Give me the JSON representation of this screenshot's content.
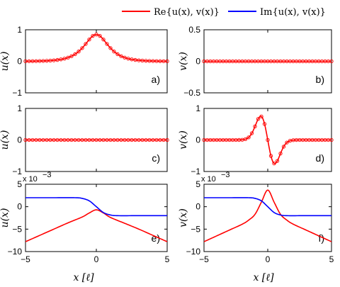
{
  "legend": {
    "real_label": "Re{u(x), v(x)}",
    "imag_label": "Im{u(x), v(x)}",
    "real_color": "#ff0000",
    "imag_color": "#0000ff"
  },
  "x_axis_label": "x [ℓ]",
  "chart_data": [
    {
      "panel": "a)",
      "type": "line",
      "ylabel": "u(x)",
      "xlim": [
        -5,
        5
      ],
      "ylim": [
        -1,
        1
      ],
      "yticks": [
        "1",
        "0",
        "−1"
      ],
      "markers": true,
      "series": [
        {
          "name": "Re{u(x), v(x)}",
          "shape": "sech",
          "amplitude": 0.85,
          "center": 0,
          "width": 0.75
        }
      ]
    },
    {
      "panel": "b)",
      "type": "line",
      "ylabel": "v(x)",
      "xlim": [
        -5,
        5
      ],
      "ylim": [
        -0.5,
        0.5
      ],
      "yticks": [
        "0.5",
        "0",
        "−0.5"
      ],
      "markers": true,
      "series": [
        {
          "name": "Re{u(x), v(x)}",
          "shape": "zero"
        }
      ]
    },
    {
      "panel": "c)",
      "type": "line",
      "ylabel": "u(x)",
      "xlim": [
        -5,
        5
      ],
      "ylim": [
        -1,
        1
      ],
      "yticks": [
        "1",
        "0",
        "−1"
      ],
      "markers": true,
      "series": [
        {
          "name": "Re{u(x), v(x)}",
          "shape": "zero"
        }
      ]
    },
    {
      "panel": "d)",
      "type": "line",
      "ylabel": "v(x)",
      "xlim": [
        -5,
        5
      ],
      "ylim": [
        -1,
        1
      ],
      "yticks": [
        "1",
        "0",
        "−1"
      ],
      "markers": true,
      "series": [
        {
          "name": "Re{u(x), v(x)}",
          "shape": "antisym",
          "peak_x": -0.55,
          "peak_y": 0.75,
          "trough_x": 0.55,
          "trough_y": -0.75
        }
      ]
    },
    {
      "panel": "e)",
      "type": "line",
      "ylabel": "u(x)",
      "y_multiplier": "x 10",
      "y_exponent": "−3",
      "xlim": [
        -5,
        5
      ],
      "ylim": [
        -10,
        5
      ],
      "yticks": [
        "5",
        "0",
        "−5",
        "−10"
      ],
      "xticks": [
        "−5",
        "0",
        "5"
      ],
      "markers": false,
      "series": [
        {
          "name": "Re{u(x), v(x)}",
          "points": [
            [
              -5,
              -7.8
            ],
            [
              -4,
              -6.4
            ],
            [
              -3,
              -5.0
            ],
            [
              -2,
              -3.6
            ],
            [
              -1,
              -2.3
            ],
            [
              -0.5,
              -1.4
            ],
            [
              0,
              -0.7
            ],
            [
              0.5,
              -1.4
            ],
            [
              1,
              -2.4
            ],
            [
              2,
              -3.7
            ],
            [
              3,
              -5.0
            ],
            [
              4,
              -6.4
            ],
            [
              5,
              -7.8
            ]
          ]
        },
        {
          "name": "Im{u(x), v(x)}",
          "points": [
            [
              -5,
              2.0
            ],
            [
              -3,
              2.0
            ],
            [
              -1.5,
              2.0
            ],
            [
              -1,
              1.85
            ],
            [
              -0.5,
              1.3
            ],
            [
              0,
              0.0
            ],
            [
              0.5,
              -1.3
            ],
            [
              1,
              -1.85
            ],
            [
              1.5,
              -2.0
            ],
            [
              3,
              -2.0
            ],
            [
              5,
              -2.0
            ]
          ]
        }
      ]
    },
    {
      "panel": "f)",
      "type": "line",
      "ylabel": "v(x)",
      "y_multiplier": "x 10",
      "y_exponent": "−3",
      "xlim": [
        -5,
        5
      ],
      "ylim": [
        -10,
        5
      ],
      "yticks": [
        "5",
        "0",
        "−5",
        "−10"
      ],
      "xticks": [
        "−5",
        "0",
        "5"
      ],
      "markers": false,
      "series": [
        {
          "name": "Re{u(x), v(x)}",
          "points": [
            [
              -5,
              -7.8
            ],
            [
              -4,
              -6.5
            ],
            [
              -3,
              -5.2
            ],
            [
              -2,
              -3.9
            ],
            [
              -1.5,
              -3.0
            ],
            [
              -1,
              -1.7
            ],
            [
              -0.5,
              1.0
            ],
            [
              0,
              3.7
            ],
            [
              0.5,
              1.0
            ],
            [
              1,
              -1.7
            ],
            [
              1.5,
              -3.0
            ],
            [
              2,
              -3.9
            ],
            [
              3,
              -5.2
            ],
            [
              4,
              -6.5
            ],
            [
              5,
              -7.8
            ]
          ]
        },
        {
          "name": "Im{u(x), v(x)}",
          "points": [
            [
              -5,
              2.0
            ],
            [
              -3,
              2.0
            ],
            [
              -1.5,
              2.0
            ],
            [
              -1,
              1.85
            ],
            [
              -0.5,
              1.3
            ],
            [
              0,
              0.0
            ],
            [
              0.5,
              -1.3
            ],
            [
              1,
              -1.85
            ],
            [
              1.5,
              -2.0
            ],
            [
              3,
              -2.0
            ],
            [
              5,
              -2.0
            ]
          ]
        }
      ]
    }
  ]
}
